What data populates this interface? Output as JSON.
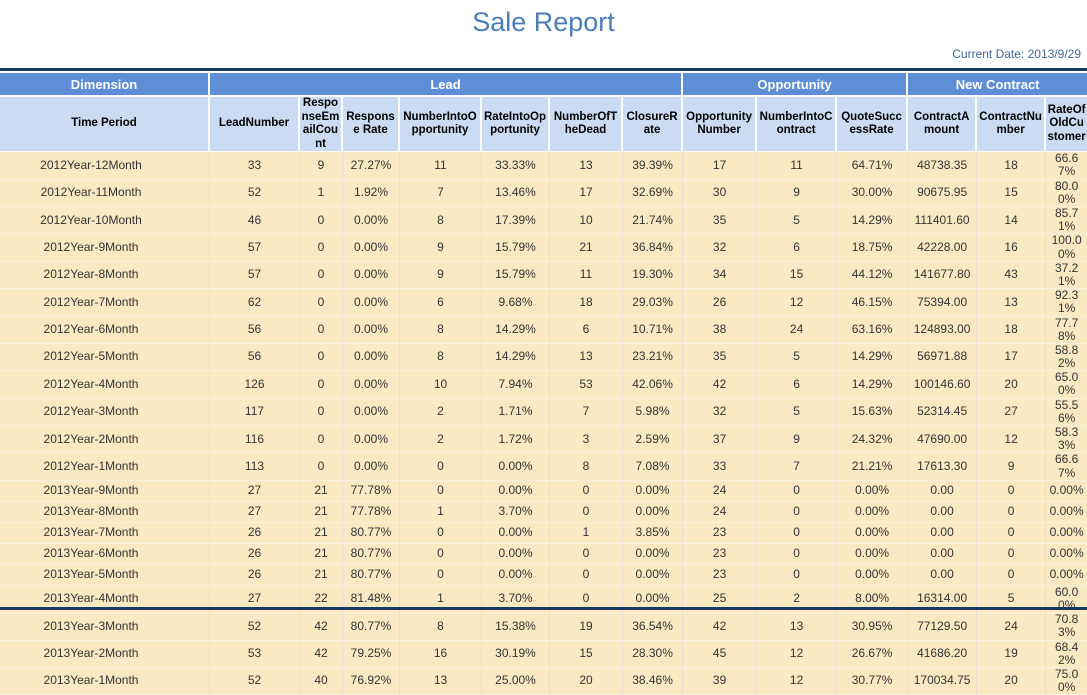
{
  "page": {
    "title": "Sale Report",
    "current_date_label": "Current Date:",
    "current_date_value": "2013/9/29"
  },
  "colors": {
    "title_blue": "#4A7EBB",
    "date_blue": "#44679C",
    "group_header_bg": "#5E8FD6",
    "subheader_bg": "#CADCF4",
    "row_bg": "#FBE9C4",
    "frame_navy": "#17375E"
  },
  "table": {
    "groups": [
      {
        "label": "Dimension",
        "span": 1
      },
      {
        "label": "Lead",
        "span": 7
      },
      {
        "label": "Opportunity",
        "span": 3
      },
      {
        "label": "New Contract",
        "span": 3
      }
    ],
    "columns": [
      "Time Period",
      "LeadNumber",
      "ResponseEmailCount",
      "Response Rate",
      "NumberIntoOpportunity",
      "RateIntoOpportunity",
      "NumberOfTheDead",
      "ClosureRate",
      "Opportunity Number",
      "NumberIntoContract",
      "QuoteSuccessRate",
      "ContractAmount",
      "ContractNumber",
      "RateOfOldCustomer"
    ],
    "rows": [
      [
        "2012Year-12Month",
        "33",
        "9",
        "27.27%",
        "11",
        "33.33%",
        "13",
        "39.39%",
        "17",
        "11",
        "64.71%",
        "48738.35",
        "18",
        "66.67%"
      ],
      [
        "2012Year-11Month",
        "52",
        "1",
        "1.92%",
        "7",
        "13.46%",
        "17",
        "32.69%",
        "30",
        "9",
        "30.00%",
        "90675.95",
        "15",
        "80.00%"
      ],
      [
        "2012Year-10Month",
        "46",
        "0",
        "0.00%",
        "8",
        "17.39%",
        "10",
        "21.74%",
        "35",
        "5",
        "14.29%",
        "111401.60",
        "14",
        "85.71%"
      ],
      [
        "2012Year-9Month",
        "57",
        "0",
        "0.00%",
        "9",
        "15.79%",
        "21",
        "36.84%",
        "32",
        "6",
        "18.75%",
        "42228.00",
        "16",
        "100.00%"
      ],
      [
        "2012Year-8Month",
        "57",
        "0",
        "0.00%",
        "9",
        "15.79%",
        "11",
        "19.30%",
        "34",
        "15",
        "44.12%",
        "141677.80",
        "43",
        "37.21%"
      ],
      [
        "2012Year-7Month",
        "62",
        "0",
        "0.00%",
        "6",
        "9.68%",
        "18",
        "29.03%",
        "26",
        "12",
        "46.15%",
        "75394.00",
        "13",
        "92.31%"
      ],
      [
        "2012Year-6Month",
        "56",
        "0",
        "0.00%",
        "8",
        "14.29%",
        "6",
        "10.71%",
        "38",
        "24",
        "63.16%",
        "124893.00",
        "18",
        "77.78%"
      ],
      [
        "2012Year-5Month",
        "56",
        "0",
        "0.00%",
        "8",
        "14.29%",
        "13",
        "23.21%",
        "35",
        "5",
        "14.29%",
        "56971.88",
        "17",
        "58.82%"
      ],
      [
        "2012Year-4Month",
        "126",
        "0",
        "0.00%",
        "10",
        "7.94%",
        "53",
        "42.06%",
        "42",
        "6",
        "14.29%",
        "100146.60",
        "20",
        "65.00%"
      ],
      [
        "2012Year-3Month",
        "117",
        "0",
        "0.00%",
        "2",
        "1.71%",
        "7",
        "5.98%",
        "32",
        "5",
        "15.63%",
        "52314.45",
        "27",
        "55.56%"
      ],
      [
        "2012Year-2Month",
        "116",
        "0",
        "0.00%",
        "2",
        "1.72%",
        "3",
        "2.59%",
        "37",
        "9",
        "24.32%",
        "47690.00",
        "12",
        "58.33%"
      ],
      [
        "2012Year-1Month",
        "113",
        "0",
        "0.00%",
        "0",
        "0.00%",
        "8",
        "7.08%",
        "33",
        "7",
        "21.21%",
        "17613.30",
        "9",
        "66.67%"
      ],
      [
        "2013Year-9Month",
        "27",
        "21",
        "77.78%",
        "0",
        "0.00%",
        "0",
        "0.00%",
        "24",
        "0",
        "0.00%",
        "0.00",
        "0",
        "0.00%"
      ],
      [
        "2013Year-8Month",
        "27",
        "21",
        "77.78%",
        "1",
        "3.70%",
        "0",
        "0.00%",
        "24",
        "0",
        "0.00%",
        "0.00",
        "0",
        "0.00%"
      ],
      [
        "2013Year-7Month",
        "26",
        "21",
        "80.77%",
        "0",
        "0.00%",
        "1",
        "3.85%",
        "23",
        "0",
        "0.00%",
        "0.00",
        "0",
        "0.00%"
      ],
      [
        "2013Year-6Month",
        "26",
        "21",
        "80.77%",
        "0",
        "0.00%",
        "0",
        "0.00%",
        "23",
        "0",
        "0.00%",
        "0.00",
        "0",
        "0.00%"
      ],
      [
        "2013Year-5Month",
        "26",
        "21",
        "80.77%",
        "0",
        "0.00%",
        "0",
        "0.00%",
        "23",
        "0",
        "0.00%",
        "0.00",
        "0",
        "0.00%"
      ],
      [
        "2013Year-4Month",
        "27",
        "22",
        "81.48%",
        "1",
        "3.70%",
        "0",
        "0.00%",
        "25",
        "2",
        "8.00%",
        "16314.00",
        "5",
        "60.00%"
      ],
      [
        "2013Year-3Month",
        "52",
        "42",
        "80.77%",
        "8",
        "15.38%",
        "19",
        "36.54%",
        "42",
        "13",
        "30.95%",
        "77129.50",
        "24",
        "70.83%"
      ],
      [
        "2013Year-2Month",
        "53",
        "42",
        "79.25%",
        "16",
        "30.19%",
        "15",
        "28.30%",
        "45",
        "12",
        "26.67%",
        "41686.20",
        "19",
        "68.42%"
      ],
      [
        "2013Year-1Month",
        "52",
        "40",
        "76.92%",
        "13",
        "25.00%",
        "20",
        "38.46%",
        "39",
        "12",
        "30.77%",
        "170034.75",
        "20",
        "75.00%"
      ]
    ]
  }
}
